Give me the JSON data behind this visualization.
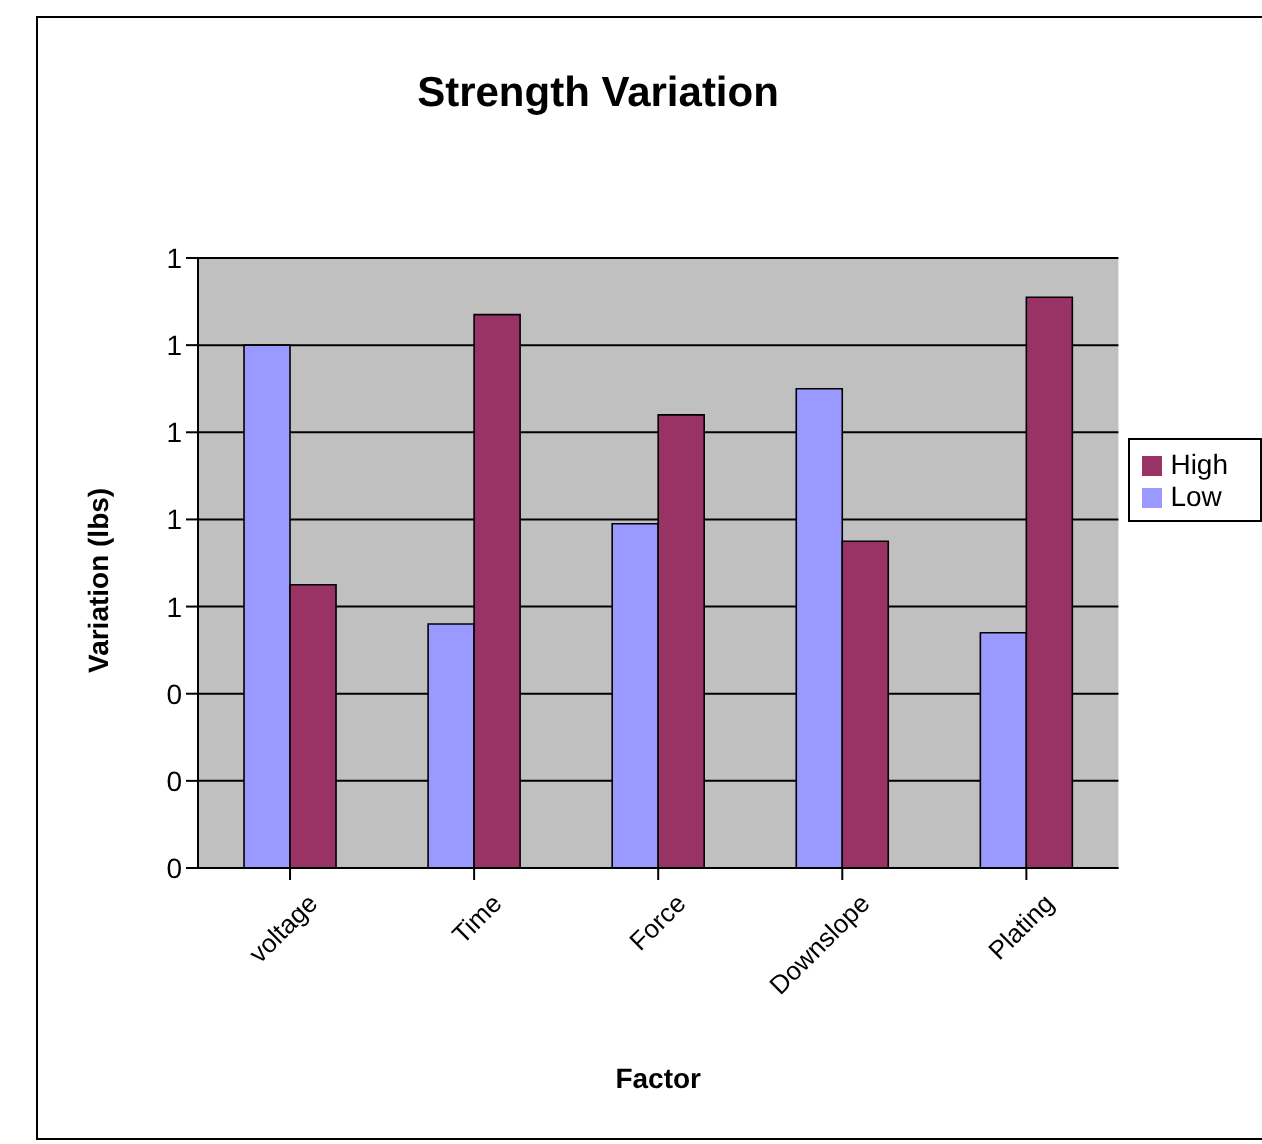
{
  "chart_data": {
    "type": "bar",
    "title": "Strength Variation",
    "xlabel": "Factor",
    "ylabel": "Variation (lbs)",
    "categories": [
      "voltage",
      "Time",
      "Force",
      "Downslope",
      "Plating"
    ],
    "series": [
      {
        "name": "Low",
        "color": "#9999ff",
        "values": [
          1.2,
          0.56,
          0.79,
          1.1,
          0.54
        ]
      },
      {
        "name": "High",
        "color": "#993366",
        "values": [
          0.65,
          1.27,
          1.04,
          0.75,
          1.31
        ]
      }
    ],
    "ylim": [
      0,
      1.4
    ],
    "yticks": [
      {
        "value": 0,
        "label": "0"
      },
      {
        "value": 0.2,
        "label": "0"
      },
      {
        "value": 0.4,
        "label": "0"
      },
      {
        "value": 0.6,
        "label": "1"
      },
      {
        "value": 0.8,
        "label": "1"
      },
      {
        "value": 1,
        "label": "1"
      },
      {
        "value": 1.2,
        "label": "1"
      },
      {
        "value": 1.4,
        "label": "1"
      }
    ],
    "grid": "y",
    "legend": "right"
  }
}
